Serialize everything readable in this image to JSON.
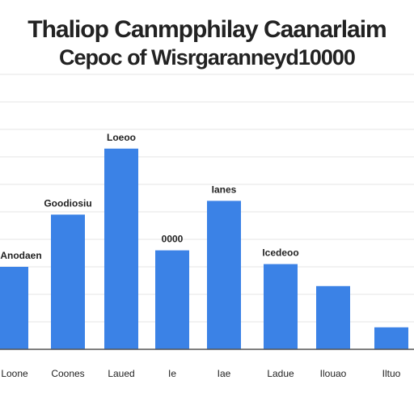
{
  "chart_data": {
    "type": "bar",
    "title": "Thaliop Canmpphilay Caanarlaim",
    "subtitle": "Cepoc of Wisrgaranneyd10000",
    "xlabel": "",
    "ylabel": "",
    "ylim": [
      0,
      100
    ],
    "grid": true,
    "categories": [
      "Loone",
      "Coones",
      "Laued",
      "Ie",
      "Iae",
      "Ladue",
      "Ilouao",
      "Iltuo"
    ],
    "values": [
      30,
      49,
      73,
      36,
      54,
      31,
      23,
      8
    ],
    "data_labels": [
      "Anodaen",
      "Goodiosiu",
      "Loeoo",
      "0000",
      "Ianes",
      "Icedeoo",
      "",
      ""
    ],
    "colors": {
      "bar": "#3b82e6",
      "grid": "#e6e6e6",
      "axis": "#555555",
      "text": "#222222"
    }
  }
}
